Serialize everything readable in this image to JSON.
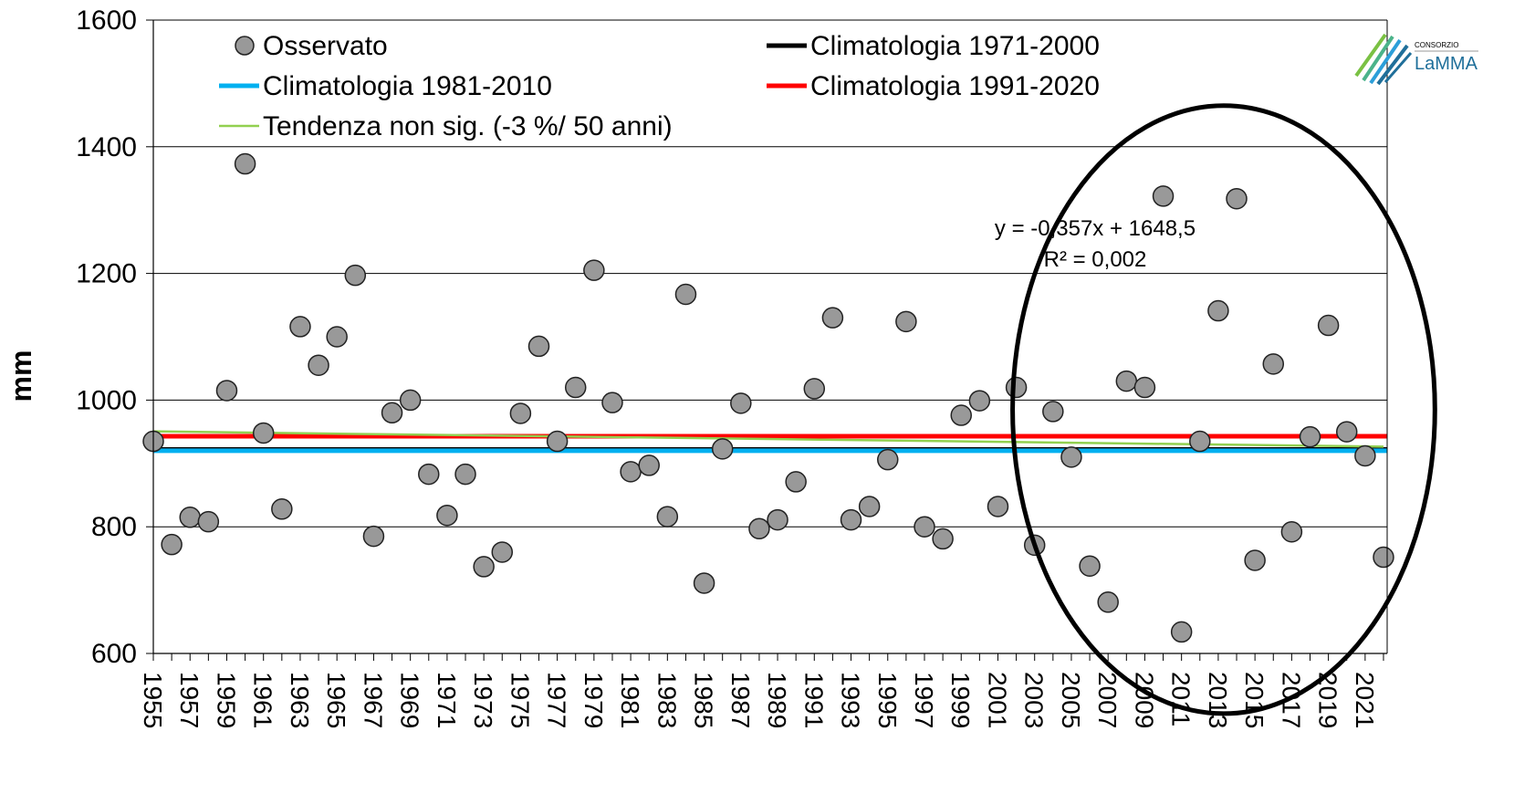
{
  "chart_data": {
    "type": "scatter",
    "ylabel": "mm",
    "xlabel": "",
    "ylim": [
      600,
      1600
    ],
    "yticks": [
      "600",
      "800",
      "1000",
      "1200",
      "1400",
      "1600"
    ],
    "xticks": [
      "1955",
      "1957",
      "1959",
      "1961",
      "1963",
      "1965",
      "1967",
      "1969",
      "1971",
      "1973",
      "1975",
      "1977",
      "1979",
      "1981",
      "1983",
      "1985",
      "1987",
      "1989",
      "1991",
      "1993",
      "1995",
      "1997",
      "1999",
      "2001",
      "2003",
      "2005",
      "2007",
      "2009",
      "2011",
      "2013",
      "2015",
      "2017",
      "2019",
      "2021"
    ],
    "grid": "horizontal",
    "legend_position": "top-left",
    "series": [
      {
        "name": "Osservato",
        "kind": "points",
        "color": "#999999",
        "x": [
          1955,
          1956,
          1957,
          1958,
          1959,
          1960,
          1961,
          1962,
          1963,
          1964,
          1965,
          1966,
          1967,
          1968,
          1969,
          1970,
          1971,
          1972,
          1973,
          1974,
          1975,
          1976,
          1977,
          1978,
          1979,
          1980,
          1981,
          1982,
          1983,
          1984,
          1985,
          1986,
          1987,
          1988,
          1989,
          1990,
          1991,
          1992,
          1993,
          1994,
          1995,
          1996,
          1997,
          1998,
          1999,
          2000,
          2001,
          2002,
          2003,
          2004,
          2005,
          2006,
          2007,
          2008,
          2009,
          2010,
          2011,
          2012,
          2013,
          2014,
          2015,
          2016,
          2017,
          2018,
          2019,
          2020,
          2021,
          2022
        ],
        "y": [
          935,
          772,
          815,
          808,
          1015,
          1373,
          948,
          828,
          1116,
          1055,
          1100,
          1197,
          785,
          980,
          1000,
          883,
          818,
          883,
          737,
          760,
          979,
          1085,
          935,
          1020,
          1205,
          996,
          887,
          897,
          816,
          1167,
          711,
          923,
          995,
          797,
          811,
          871,
          1018,
          1130,
          811,
          832,
          906,
          1124,
          800,
          781,
          976,
          999,
          832,
          1020,
          771,
          982,
          910,
          738,
          681,
          1030,
          1020,
          1322,
          634,
          935,
          1141,
          1318,
          747,
          1057,
          792,
          942,
          1118,
          950,
          912,
          752
        ]
      },
      {
        "name": "Climatologia 1971-2000",
        "kind": "hline",
        "value": 922,
        "color": "#000000"
      },
      {
        "name": "Climatologia 1981-2010",
        "kind": "hline",
        "value": 920,
        "color": "#00b0f0"
      },
      {
        "name": "Climatologia 1991-2020",
        "kind": "hline",
        "value": 943,
        "color": "#ff0000"
      },
      {
        "name": "Tendenza non sig. (-3 %/ 50 anni)",
        "kind": "trend",
        "x": [
          1955,
          2022
        ],
        "y": [
          950.6,
          926.6
        ],
        "color": "#92d050"
      }
    ],
    "annotations": {
      "equation": "y = -0,357x + 1648,5",
      "r2": "R² = 0,002"
    },
    "highlight_ellipse": {
      "x_center": 2013.3,
      "y_center": 985,
      "x_radius": 11.5,
      "y_radius": 480
    }
  },
  "logo": {
    "top": "CONSORZIO",
    "name": "LaMMA"
  }
}
